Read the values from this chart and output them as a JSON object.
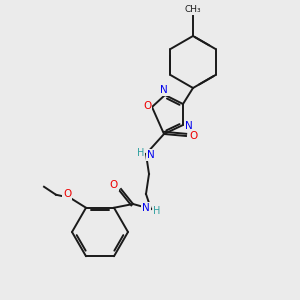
{
  "background_color": "#ebebeb",
  "bond_color": "#1a1a1a",
  "atom_colors": {
    "N": "#0000ee",
    "O": "#ee0000",
    "H": "#2fa0a0",
    "C": "#1a1a1a"
  },
  "figsize": [
    3.0,
    3.0
  ],
  "dpi": 100
}
